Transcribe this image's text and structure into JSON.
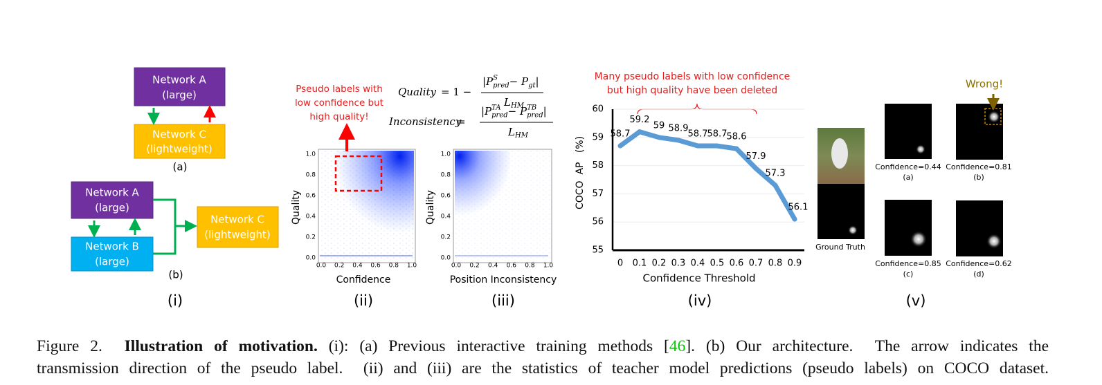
{
  "panel_i": {
    "a": {
      "top_box": [
        "Network A",
        "(large)"
      ],
      "bottom_box": [
        "Network C",
        "(lightweight)"
      ],
      "label": "(a)"
    },
    "b": {
      "box_a": [
        "Network A",
        "(large)"
      ],
      "box_b": [
        "Network B",
        "(large)"
      ],
      "box_c": [
        "Network C",
        "(lightweight)"
      ],
      "label": "(b)"
    },
    "label": "(i)"
  },
  "equations": {
    "quality": {
      "lhs": "Quality",
      "op": "= 1 −",
      "num": [
        {
          "t": "|P",
          "sup": "S",
          "sub": "pred"
        },
        {
          "t": " − P",
          "sub": "gt"
        },
        {
          "t": "|"
        }
      ],
      "den": {
        "t": "L",
        "sub": "HM"
      }
    },
    "inconsistency": {
      "lhs": "Inconsistency",
      "op": "=",
      "num": [
        {
          "t": "|P",
          "sup": "TA",
          "sub": "pred"
        },
        {
          "t": " − P",
          "sup": "TB",
          "sub": "pred"
        },
        {
          "t": "|"
        }
      ],
      "den": {
        "t": "L",
        "sub": "HM"
      }
    }
  },
  "panel_ii": {
    "annotation": [
      "Pseudo labels with",
      "low confidence but",
      "high quality!"
    ],
    "xlabel": "Confidence",
    "ylabel": "Quality",
    "xticks": [
      "0.0",
      "0.2",
      "0.4",
      "0.6",
      "0.8",
      "1.0"
    ],
    "yticks": [
      "0.0",
      "0.2",
      "0.4",
      "0.6",
      "0.8",
      "1.0"
    ],
    "label": "(ii)"
  },
  "panel_iii": {
    "xlabel": "Position Inconsistency",
    "ylabel": "Quality",
    "xticks": [
      "0.0",
      "0.2",
      "0.4",
      "0.6",
      "0.8",
      "1.0"
    ],
    "yticks": [
      "0.0",
      "0.2",
      "0.4",
      "0.6",
      "0.8",
      "1.0"
    ],
    "label": "(iii)"
  },
  "chart_data": {
    "type": "line",
    "annotation": [
      "Many pseudo labels with low confidence",
      "but high quality have been deleted"
    ],
    "x_label": "Confidence Threshold",
    "y_label": "COCO  AP   (%)",
    "categories": [
      "0",
      "0.1",
      "0.2",
      "0.3",
      "0.4",
      "0.5",
      "0.6",
      "0.7",
      "0.8",
      "0.9"
    ],
    "values": [
      58.7,
      59.2,
      59,
      58.9,
      58.7,
      58.7,
      58.6,
      57.9,
      57.3,
      56.1
    ],
    "color": "#5b9bd5",
    "ylim": [
      55,
      60
    ],
    "yticks": [
      55,
      56,
      57,
      58,
      59,
      60
    ],
    "grid": true,
    "label": "(iv)"
  },
  "panel_v": {
    "ground_truth": "Ground Truth",
    "wrong": "Wrong!",
    "items": [
      [
        "Confidence=0.44",
        "(a)"
      ],
      [
        "Confidence=0.81",
        "(b)"
      ],
      [
        "Confidence=0.85",
        "(c)"
      ],
      [
        "Confidence=0.62",
        "(d)"
      ]
    ],
    "label": "(v)"
  },
  "caption": {
    "line1": [
      "Figure 2.",
      "Illustration of motivation.",
      "(i): (a) Previous interactive training methods [",
      "46",
      "]. (b) Our architecture.  The arrow indicates the"
    ],
    "line2": "transmission direction of the pseudo label.  (ii) and (iii) are the statistics of teacher model predictions (pseudo labels) on COCO dataset."
  }
}
